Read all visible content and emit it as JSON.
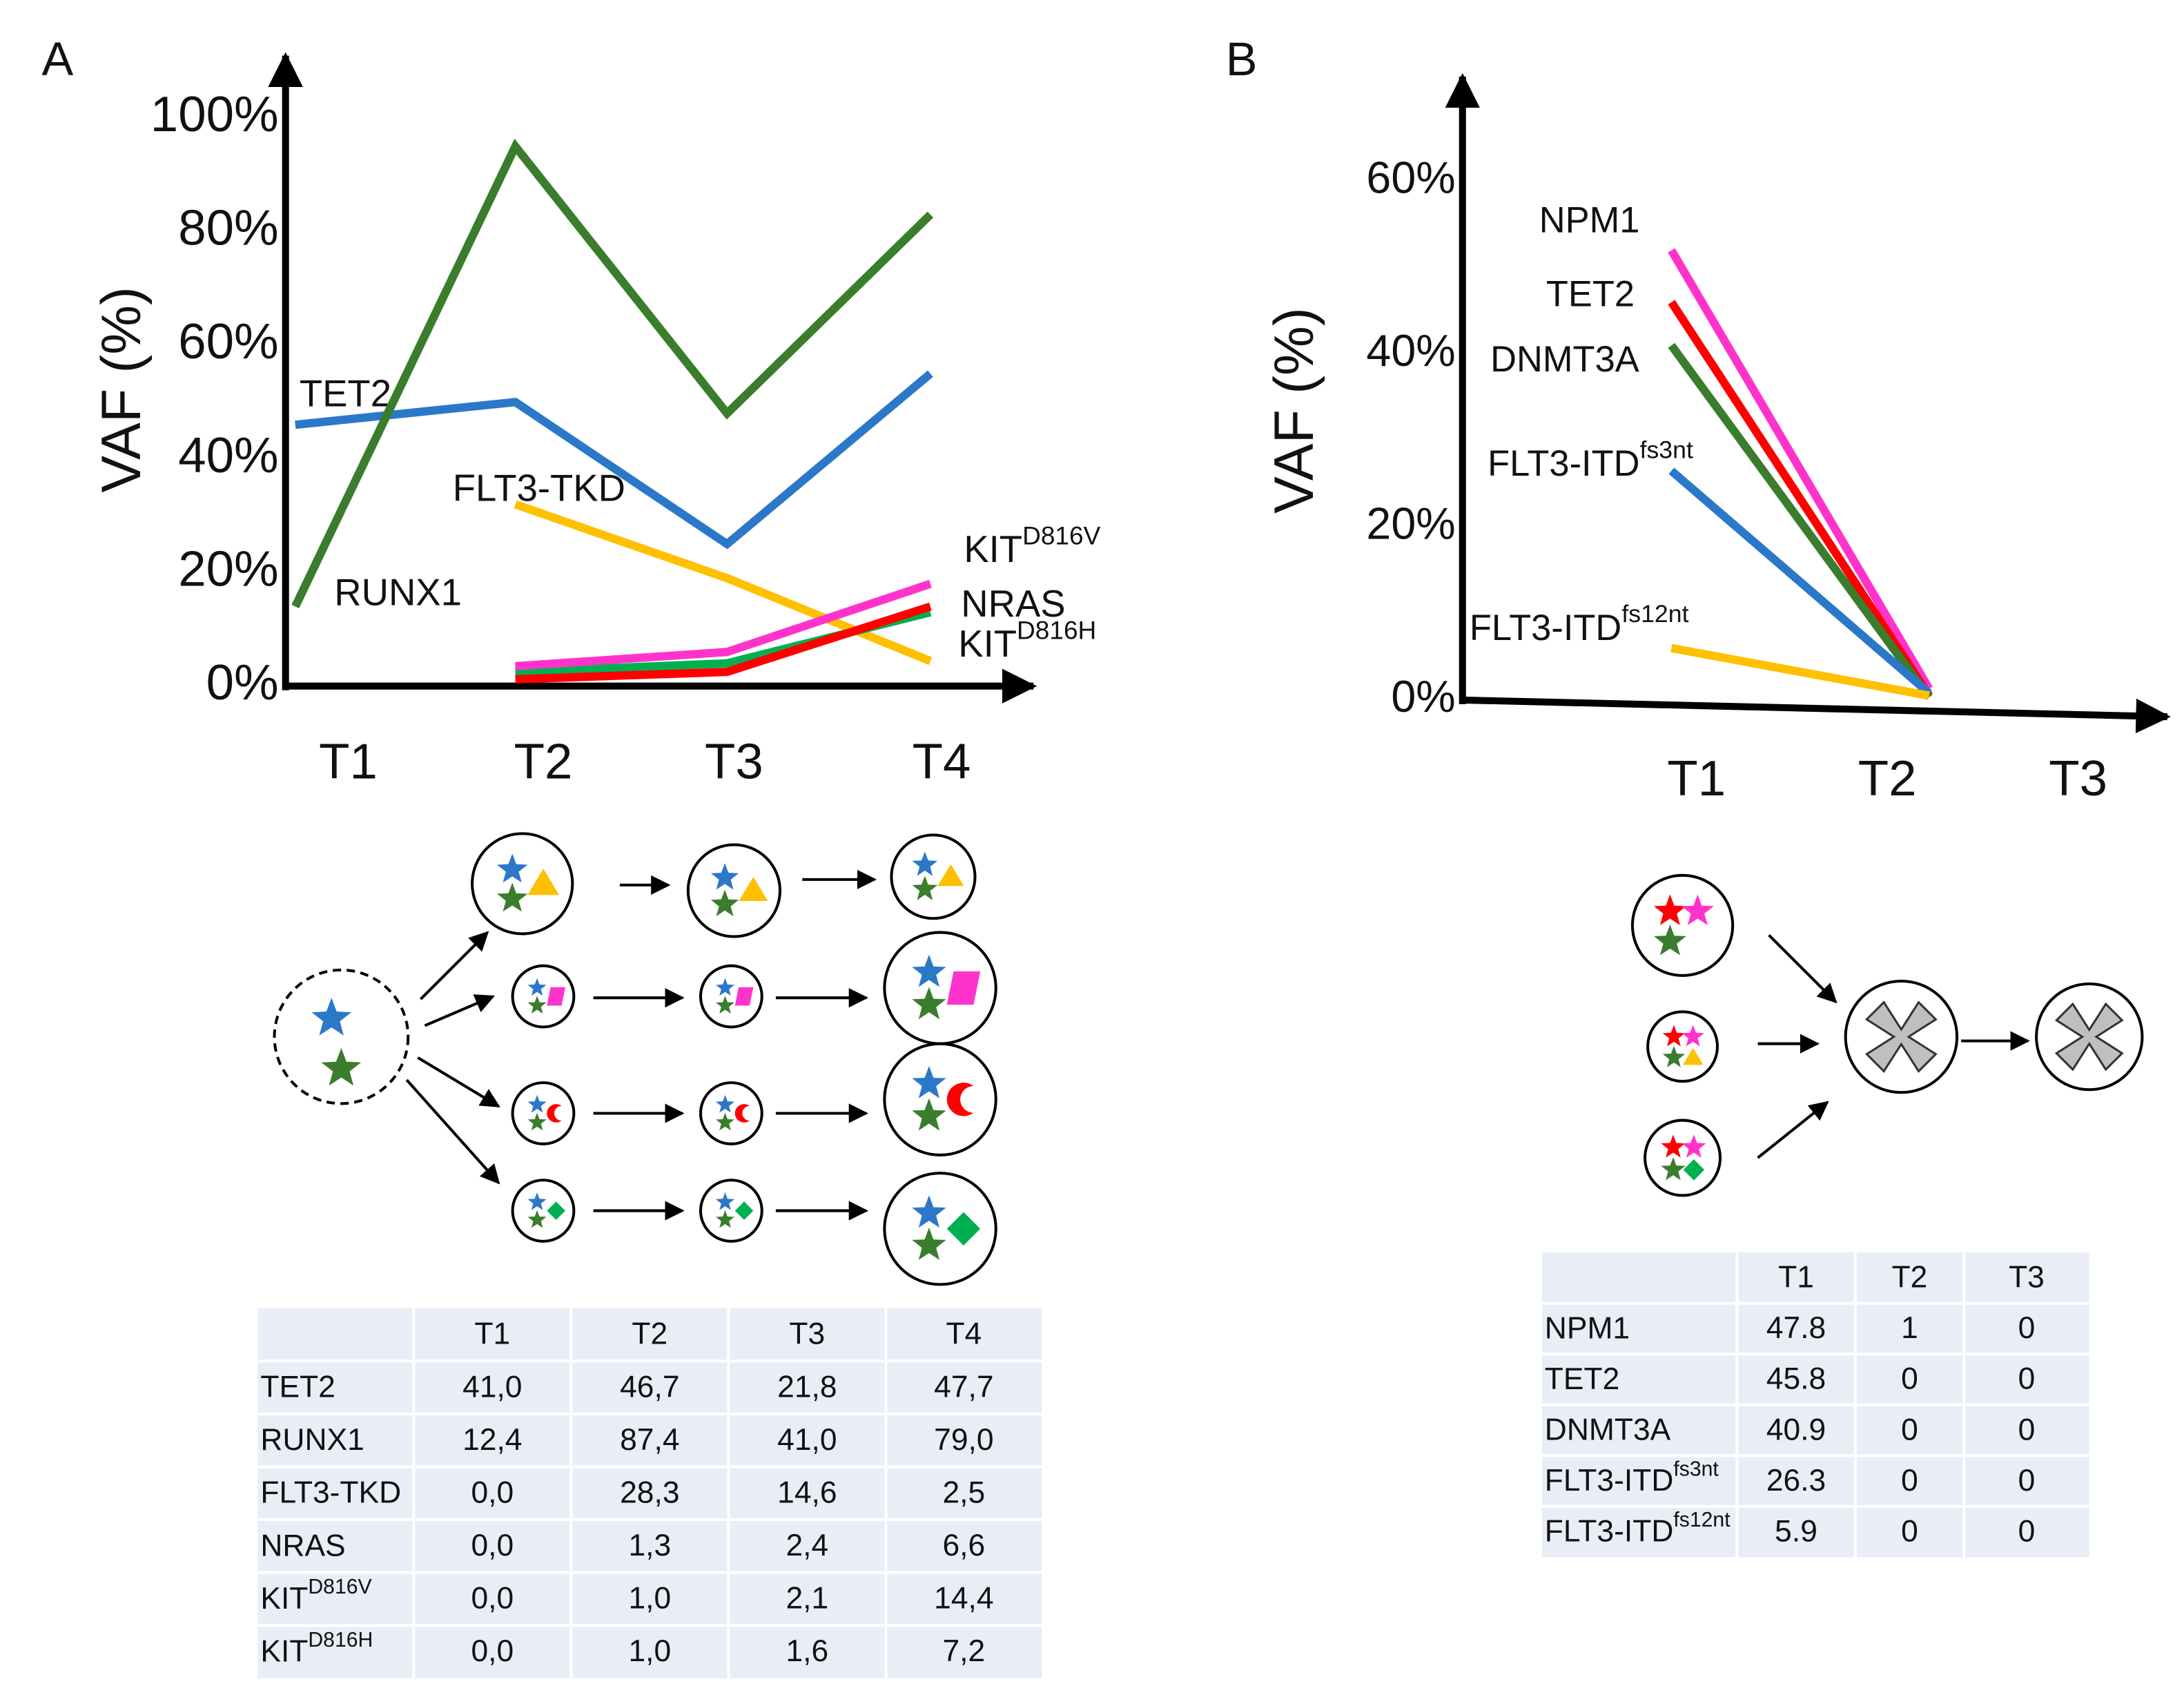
{
  "chart_data": [
    {
      "type": "line",
      "panel": "A",
      "ylabel": "VAF (%)",
      "categories": [
        "T1",
        "T2",
        "T3",
        "T4"
      ],
      "ylim": [
        0,
        110
      ],
      "yticks": [
        {
          "value": 0,
          "label": "0%"
        },
        {
          "value": 20,
          "label": "20%"
        },
        {
          "value": 40,
          "label": "40%"
        },
        {
          "value": 60,
          "label": "60%"
        },
        {
          "value": 80,
          "label": "80%"
        },
        {
          "value": 100,
          "label": "100%"
        }
      ],
      "series": [
        {
          "name": "TET2",
          "color": "#2b78c9",
          "values": [
            46,
            50,
            25,
            55
          ]
        },
        {
          "name": "RUNX1",
          "color": "#3a7d2c",
          "values": [
            14,
            95,
            48,
            83
          ]
        },
        {
          "name": "FLT3-TKD",
          "color": "#ffc000",
          "values": [
            null,
            32,
            19,
            4.4
          ]
        },
        {
          "name": "NRAS",
          "color": "#00b050",
          "values": [
            null,
            2.5,
            4,
            13
          ]
        },
        {
          "name": "KIT",
          "sup": "D816V",
          "color": "#ff33cc",
          "values": [
            null,
            3.5,
            6,
            18
          ]
        },
        {
          "name": "KIT",
          "sup": "D816H",
          "color": "#ff0000",
          "values": [
            null,
            1.2,
            2.5,
            14
          ]
        }
      ]
    },
    {
      "type": "line",
      "panel": "B",
      "ylabel": "VAF (%)",
      "categories": [
        "T1",
        "T2",
        "T3"
      ],
      "ylim": [
        0,
        70
      ],
      "yticks": [
        {
          "value": 0,
          "label": "0%"
        },
        {
          "value": 20,
          "label": "20%"
        },
        {
          "value": 40,
          "label": "40%"
        },
        {
          "value": 60,
          "label": "60%"
        }
      ],
      "series": [
        {
          "name": "NPM1",
          "color": "#ff33cc",
          "values": [
            52,
            1.3,
            null
          ]
        },
        {
          "name": "TET2",
          "color": "#ff0000",
          "values": [
            46,
            0.5,
            null
          ]
        },
        {
          "name": "DNMT3A",
          "color": "#3a7d2c",
          "values": [
            41,
            0.3,
            null
          ]
        },
        {
          "name": "FLT3-ITD",
          "sup": "fs3nt",
          "color": "#2b78c9",
          "values": [
            26.5,
            0.8,
            null
          ]
        },
        {
          "name": "FLT3-ITD",
          "sup": "fs12nt",
          "color": "#ffc000",
          "values": [
            6,
            0.5,
            null
          ]
        }
      ]
    }
  ],
  "tables": [
    {
      "columns": [
        "T1",
        "T2",
        "T3",
        "T4"
      ],
      "rows": [
        {
          "label": "TET2",
          "cells": [
            "41,0",
            "46,7",
            "21,8",
            "47,7"
          ]
        },
        {
          "label": "RUNX1",
          "cells": [
            "12,4",
            "87,4",
            "41,0",
            "79,0"
          ]
        },
        {
          "label": "FLT3-TKD",
          "cells": [
            "0,0",
            "28,3",
            "14,6",
            "2,5"
          ]
        },
        {
          "label": "NRAS",
          "cells": [
            "0,0",
            "1,3",
            "2,4",
            "6,6"
          ]
        },
        {
          "label": "KIT",
          "sup": "D816V",
          "cells": [
            "0,0",
            "1,0",
            "2,1",
            "14,4"
          ]
        },
        {
          "label": "KIT",
          "sup": "D816H",
          "cells": [
            "0,0",
            "1,0",
            "1,6",
            "7,2"
          ]
        }
      ]
    },
    {
      "columns": [
        "T1",
        "T2",
        "T3"
      ],
      "rows": [
        {
          "label": "NPM1",
          "cells": [
            "47.8",
            "1",
            "0"
          ]
        },
        {
          "label": "TET2",
          "cells": [
            "45.8",
            "0",
            "0"
          ]
        },
        {
          "label": "DNMT3A",
          "cells": [
            "40.9",
            "0",
            "0"
          ]
        },
        {
          "label": "FLT3-ITD",
          "sup": "fs3nt",
          "cells": [
            "26.3",
            "0",
            "0"
          ]
        },
        {
          "label": "FLT3-ITD",
          "sup": "fs12nt",
          "cells": [
            "5.9",
            "0",
            "0"
          ]
        }
      ]
    }
  ]
}
